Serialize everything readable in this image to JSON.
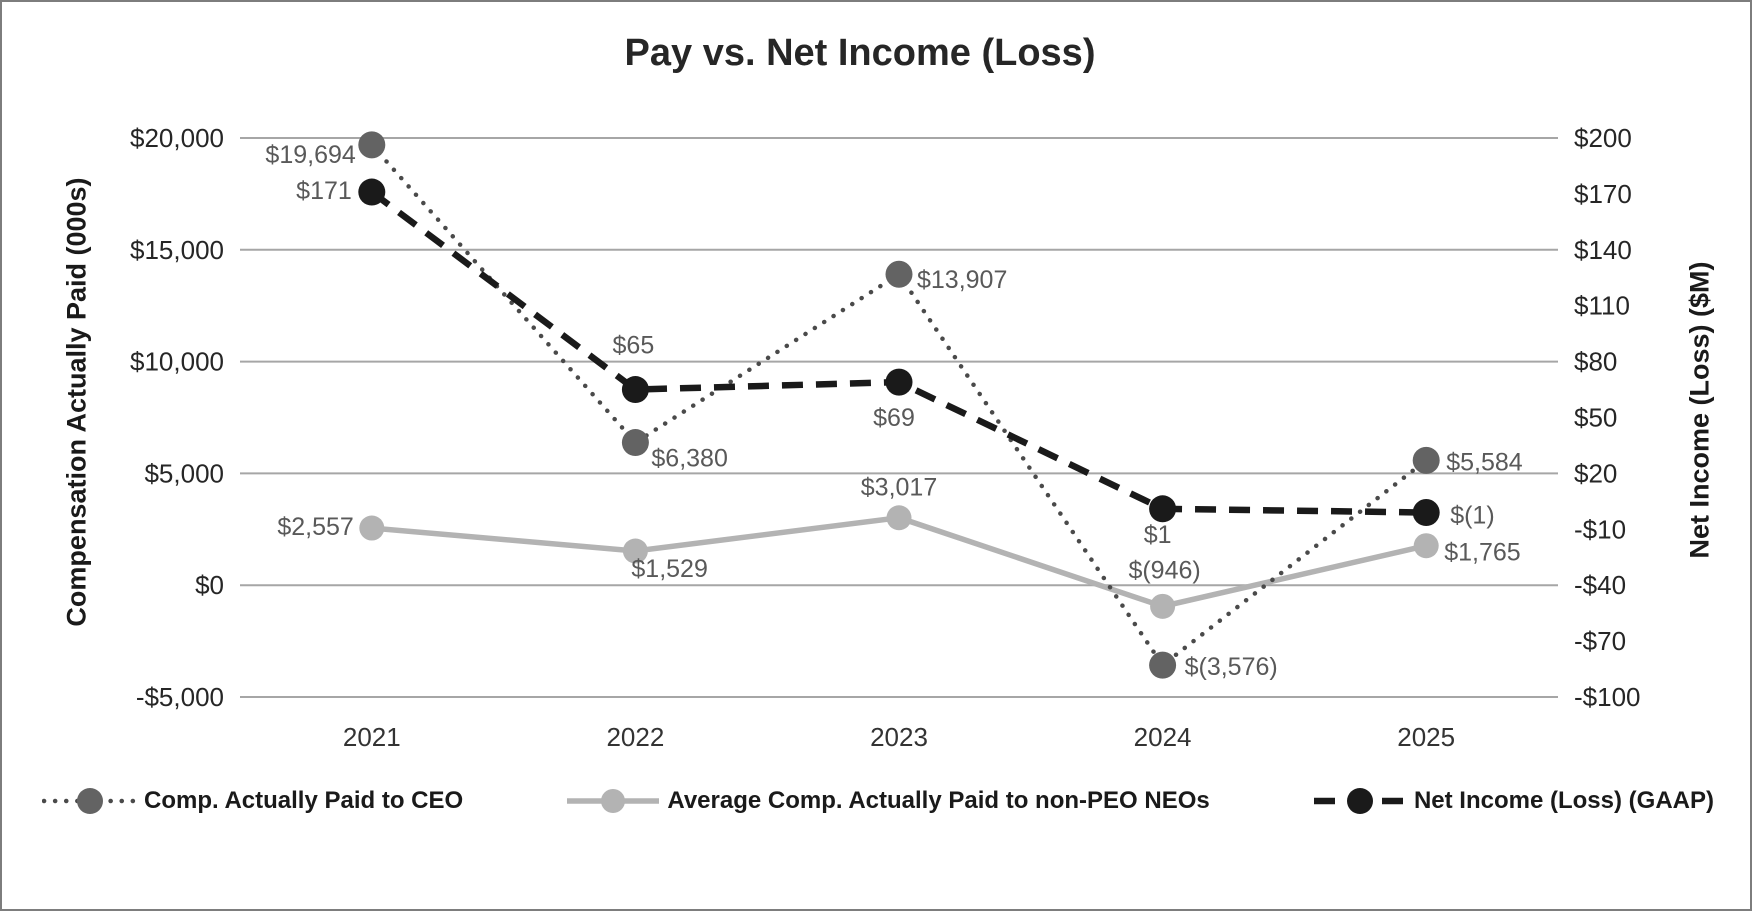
{
  "title": "Pay vs. Net Income (Loss)",
  "left_axis": {
    "title": "Compensation Actually Paid (000s)",
    "tick_labels": [
      "$20,000",
      "$15,000",
      "$10,000",
      "$5,000",
      "$0",
      "-$5,000"
    ],
    "tick_values": [
      20000,
      15000,
      10000,
      5000,
      0,
      -5000
    ]
  },
  "right_axis": {
    "title": "Net Income (Loss) ($M)",
    "tick_labels": [
      "$200",
      "$170",
      "$140",
      "$110",
      "$80",
      "$50",
      "$20",
      "-$10",
      "-$40",
      "-$70",
      "-$100"
    ],
    "tick_values": [
      200,
      170,
      140,
      110,
      80,
      50,
      20,
      -10,
      -40,
      -70,
      -100
    ]
  },
  "x_axis": {
    "categories": [
      "2021",
      "2022",
      "2023",
      "2024",
      "2025"
    ]
  },
  "legend": {
    "position": "bottom",
    "items": [
      {
        "label": "Comp. Actually Paid to CEO"
      },
      {
        "label": "Average Comp. Actually Paid to non-PEO NEOs"
      },
      {
        "label": "Net Income (Loss) (GAAP)"
      }
    ]
  },
  "colors": {
    "ceo_marker": "#636363",
    "ceo_line": "#4a4a4a",
    "neo": "#b3b3b3",
    "net_income": "#1a1a1a",
    "gridline": "#a6a6a6",
    "tick_text": "#262626",
    "data_label_text": "#595959"
  },
  "chart_data": {
    "type": "line",
    "categories": [
      "2021",
      "2022",
      "2023",
      "2024",
      "2025"
    ],
    "grid": true,
    "left_ylim": [
      -5000,
      20000
    ],
    "right_ylim": [
      -100,
      200
    ],
    "legend_position": "bottom",
    "series": [
      {
        "name": "Comp. Actually Paid to CEO",
        "axis": "left",
        "style": "dotted",
        "line_color": "#4a4a4a",
        "marker_color": "#636363",
        "values": [
          19694,
          6380,
          13907,
          -3576,
          5584
        ],
        "labels": [
          "$19,694",
          "$6,380",
          "$13,907",
          "$(3,576)",
          "$5,584"
        ],
        "label_pos": [
          {
            "anchor": "end",
            "dx": -16,
            "dy": 18
          },
          {
            "anchor": "start",
            "dx": 16,
            "dy": 24
          },
          {
            "anchor": "start",
            "dx": 18,
            "dy": 14
          },
          {
            "anchor": "start",
            "dx": 22,
            "dy": 10
          },
          {
            "anchor": "start",
            "dx": 20,
            "dy": 10
          }
        ]
      },
      {
        "name": "Average Comp. Actually Paid to non-PEO NEOs",
        "axis": "left",
        "style": "solid",
        "line_color": "#b3b3b3",
        "marker_color": "#b3b3b3",
        "values": [
          2557,
          1529,
          3017,
          -946,
          1765
        ],
        "labels": [
          "$2,557",
          "$1,529",
          "$3,017",
          "$(946)",
          "$1,765"
        ],
        "label_pos": [
          {
            "anchor": "end",
            "dx": -18,
            "dy": 7
          },
          {
            "anchor": "start",
            "dx": -4,
            "dy": 26
          },
          {
            "anchor": "middle",
            "dx": 0,
            "dy": -22
          },
          {
            "anchor": "middle",
            "dx": 2,
            "dy": -28
          },
          {
            "anchor": "start",
            "dx": 18,
            "dy": 15
          }
        ]
      },
      {
        "name": "Net Income (Loss) (GAAP)",
        "axis": "right",
        "style": "dashed",
        "line_color": "#1a1a1a",
        "marker_color": "#1a1a1a",
        "values": [
          171,
          65,
          69,
          1,
          -1
        ],
        "labels": [
          "$171",
          "$65",
          "$69",
          "$1",
          "$(1)"
        ],
        "label_pos": [
          {
            "anchor": "end",
            "dx": -20,
            "dy": 7
          },
          {
            "anchor": "middle",
            "dx": -2,
            "dy": -36
          },
          {
            "anchor": "middle",
            "dx": -5,
            "dy": 44
          },
          {
            "anchor": "middle",
            "dx": -5,
            "dy": 34
          },
          {
            "anchor": "start",
            "dx": 24,
            "dy": 11
          }
        ]
      }
    ]
  }
}
